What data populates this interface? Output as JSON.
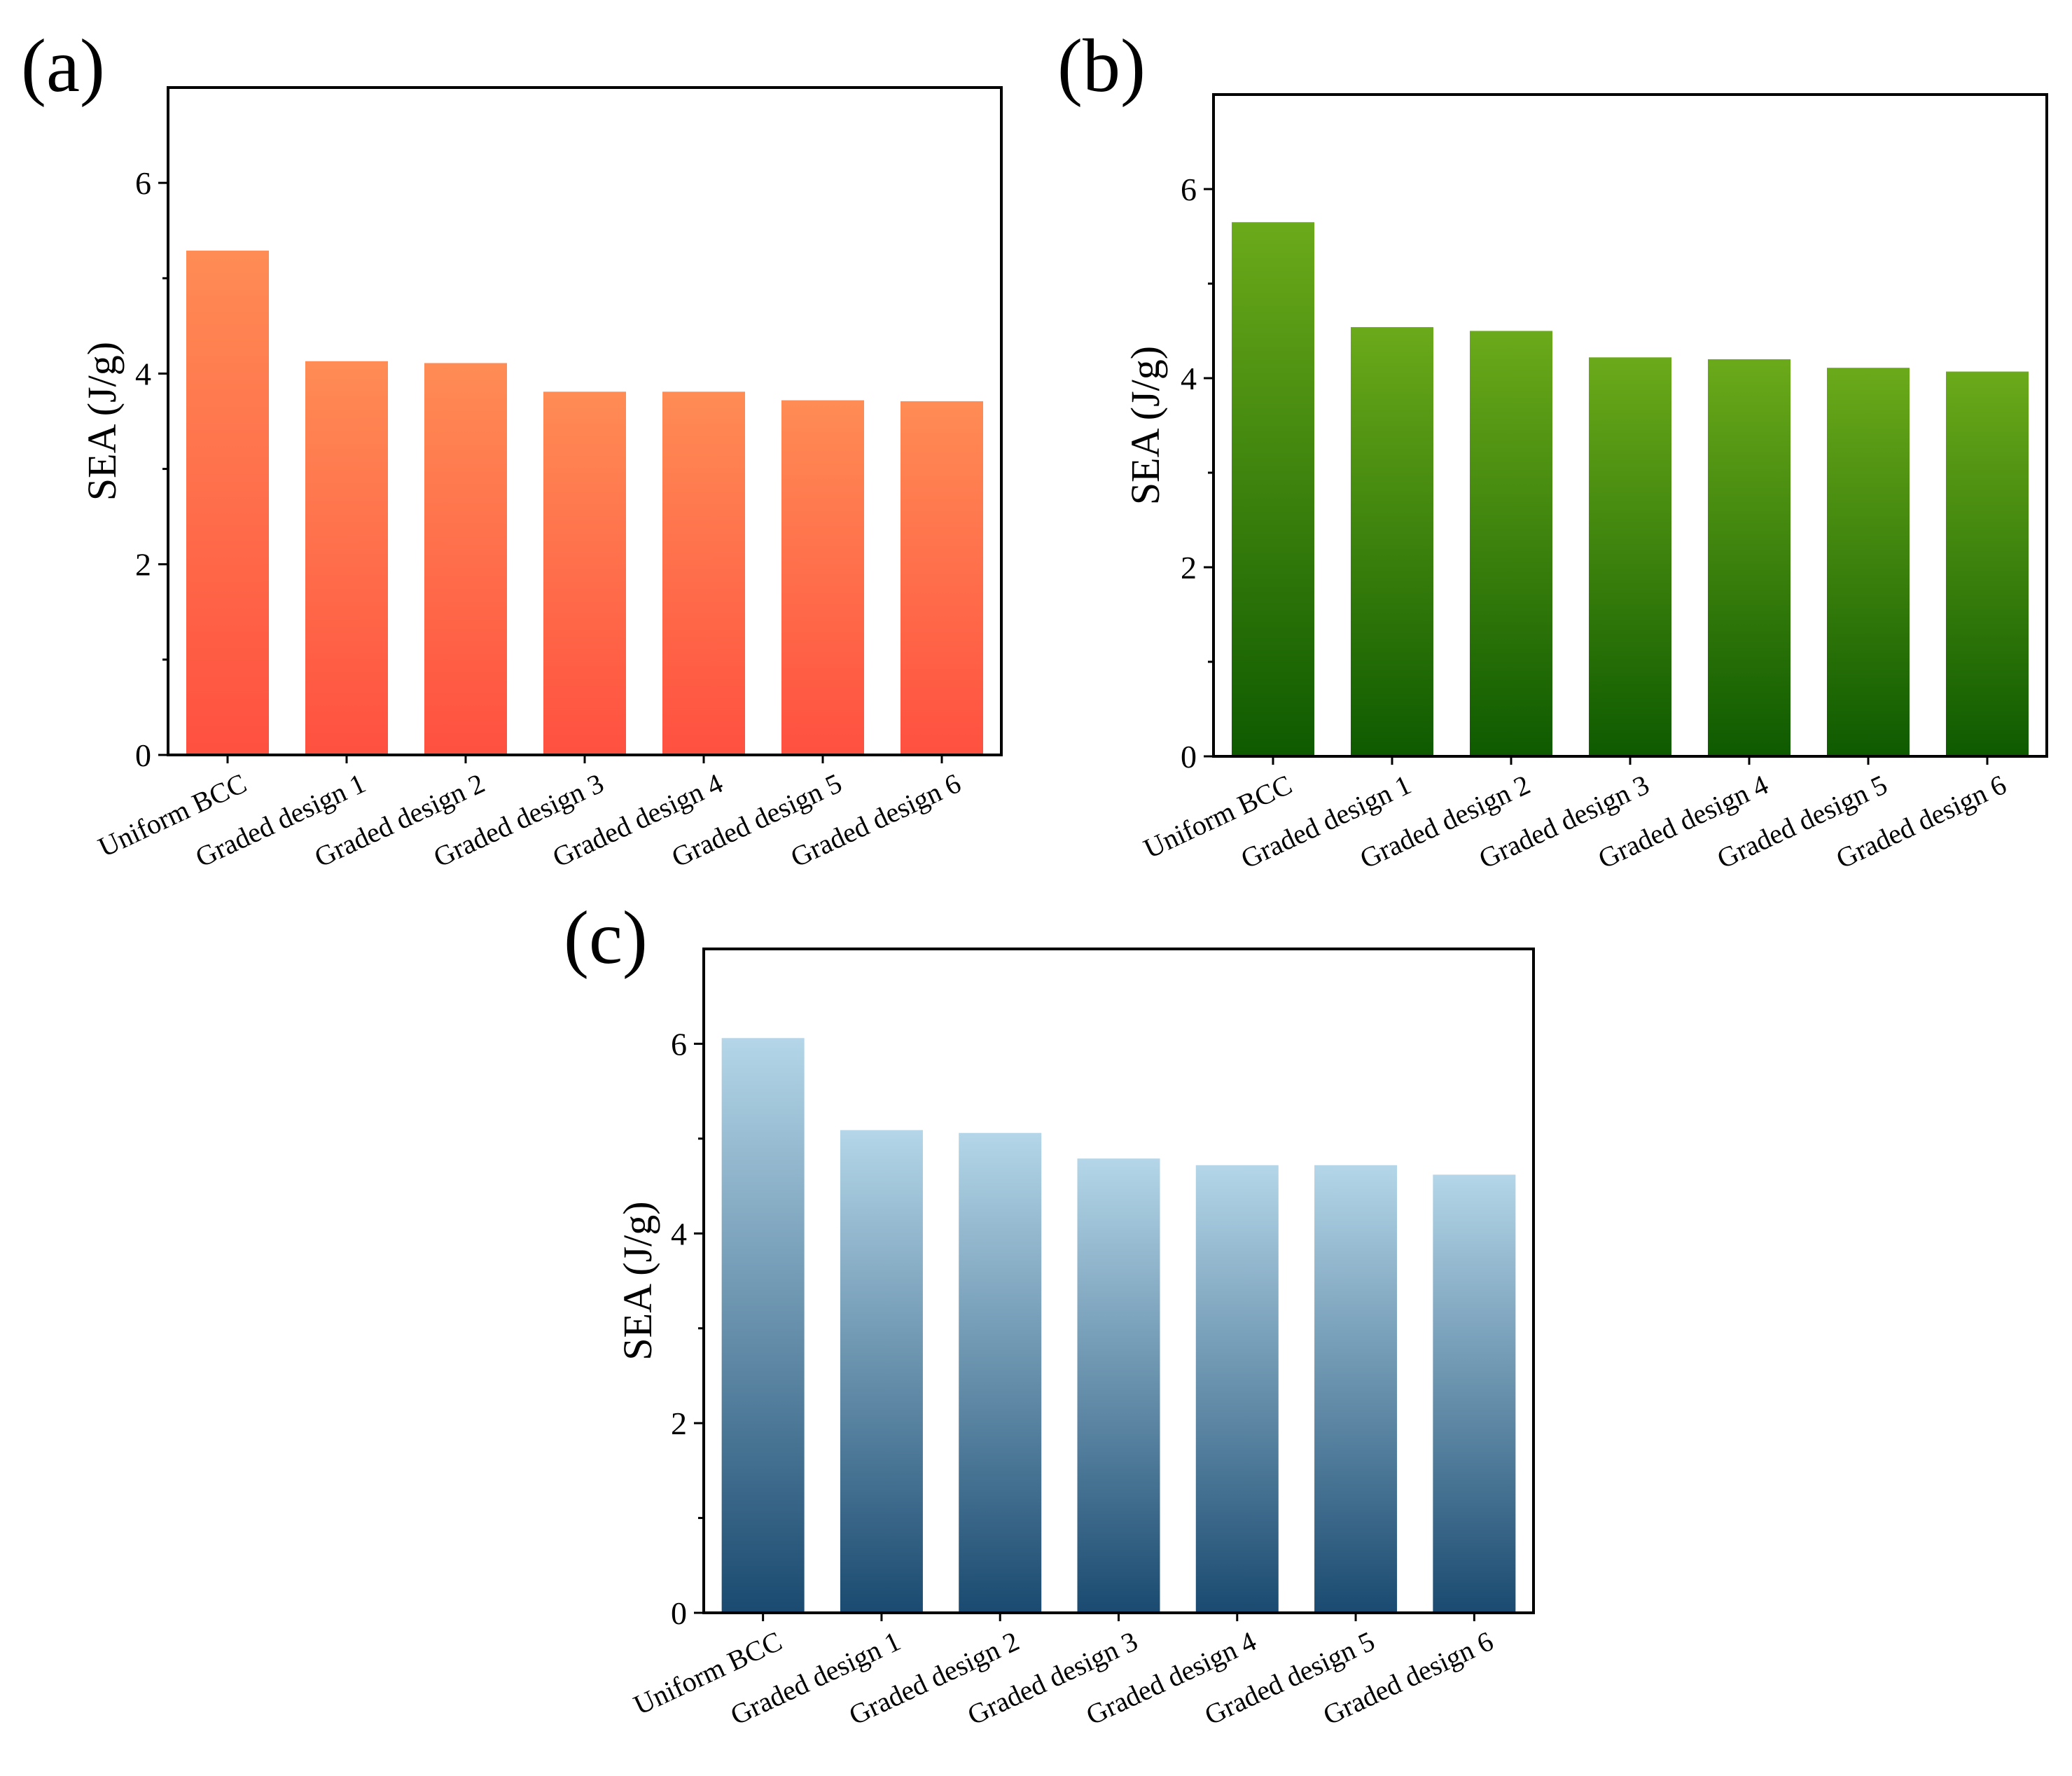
{
  "figure": {
    "title": ""
  },
  "chart_data": [
    {
      "panel_label": "(a)",
      "type": "bar",
      "categories": [
        "Uniform BCC",
        "Graded design 1",
        "Graded design 2",
        "Graded design 3",
        "Graded design 4",
        "Graded design 5",
        "Graded design 6"
      ],
      "values": [
        5.29,
        4.13,
        4.11,
        3.81,
        3.81,
        3.72,
        3.71
      ],
      "ylabel": "SEA (J/g)",
      "xlabel": "",
      "ylim": [
        0,
        7
      ],
      "yticks": [
        0,
        2,
        4,
        6
      ],
      "ytick_labels": [
        "0",
        "2",
        "4",
        "6"
      ],
      "gradient": {
        "top": "#FF8C55",
        "bottom": "#FF5040"
      }
    },
    {
      "panel_label": "(b)",
      "type": "bar",
      "categories": [
        "Uniform BCC",
        "Graded design 1",
        "Graded design 2",
        "Graded design 3",
        "Graded design 4",
        "Graded design 5",
        "Graded design 6"
      ],
      "values": [
        5.65,
        4.54,
        4.5,
        4.22,
        4.2,
        4.11,
        4.07
      ],
      "ylabel": "SEA (J/g)",
      "xlabel": "",
      "ylim": [
        0,
        7
      ],
      "yticks": [
        0,
        2,
        4,
        6
      ],
      "ytick_labels": [
        "0",
        "2",
        "4",
        "6"
      ],
      "gradient": {
        "top": "#6BAA1A",
        "bottom": "#0E5A00"
      }
    },
    {
      "panel_label": "(c)",
      "type": "bar",
      "categories": [
        "Uniform BCC",
        "Graded design 1",
        "Graded design 2",
        "Graded design 3",
        "Graded design 4",
        "Graded design 5",
        "Graded design 6"
      ],
      "values": [
        6.06,
        5.09,
        5.06,
        4.79,
        4.72,
        4.72,
        4.62
      ],
      "ylabel": "SEA (J/g)",
      "xlabel": "",
      "ylim": [
        0,
        7
      ],
      "yticks": [
        0,
        2,
        4,
        6
      ],
      "ytick_labels": [
        "0",
        "2",
        "4",
        "6"
      ],
      "gradient": {
        "top": "#B4D6E8",
        "bottom": "#1A4A70"
      }
    }
  ]
}
